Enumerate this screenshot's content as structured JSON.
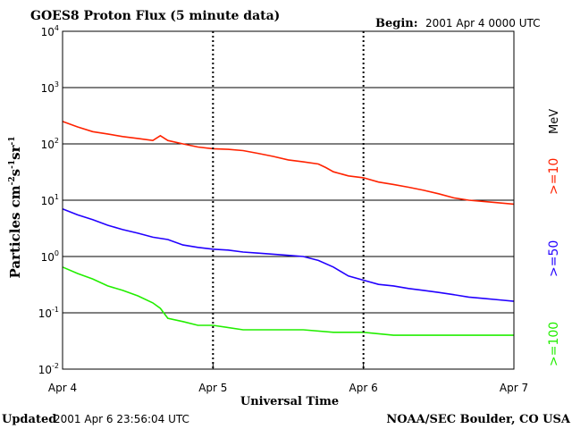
{
  "header": {
    "title": "GOES8 Proton Flux (5 minute data)",
    "begin_label": "Begin:",
    "begin_value": "2001 Apr 4 0000 UTC"
  },
  "footer": {
    "updated_label": "Updated",
    "updated_value": "2001 Apr  6 23:56:04 UTC",
    "credit": "NOAA/SEC Boulder, CO USA"
  },
  "chart_data": {
    "type": "line",
    "title": "GOES8 Proton Flux (5 minute data)",
    "xlabel": "Universal Time",
    "ylabel_base": "Particles cm",
    "ylabel_parts": [
      "-2",
      "s",
      "-1",
      "sr",
      "-1"
    ],
    "yscale": "log",
    "ylim": [
      0.01,
      10000
    ],
    "xlim": [
      0,
      3
    ],
    "x_unit": "days since 2001 Apr 4 0000 UTC",
    "x_ticks": [
      {
        "value": 0,
        "label": "Apr 4"
      },
      {
        "value": 1,
        "label": "Apr 5"
      },
      {
        "value": 2,
        "label": "Apr 6"
      },
      {
        "value": 3,
        "label": "Apr 7"
      }
    ],
    "y_ticks": [
      {
        "value": 0.01,
        "base": "10",
        "exp": "-2"
      },
      {
        "value": 0.1,
        "base": "10",
        "exp": "-1"
      },
      {
        "value": 1,
        "base": "10",
        "exp": "0"
      },
      {
        "value": 10,
        "base": "10",
        "exp": "1"
      },
      {
        "value": 100,
        "base": "10",
        "exp": "2"
      },
      {
        "value": 1000,
        "base": "10",
        "exp": "3"
      },
      {
        "value": 10000,
        "base": "10",
        "exp": "4"
      }
    ],
    "gridlines_y": [
      0.1,
      1,
      10,
      100,
      1000
    ],
    "series": [
      {
        "name": ">=10",
        "color": "#ff2200",
        "x": [
          0,
          0.1,
          0.2,
          0.3,
          0.4,
          0.5,
          0.6,
          0.65,
          0.7,
          0.8,
          0.9,
          1.0,
          1.1,
          1.2,
          1.3,
          1.4,
          1.5,
          1.6,
          1.7,
          1.75,
          1.8,
          1.9,
          2.0,
          2.1,
          2.2,
          2.3,
          2.4,
          2.5,
          2.6,
          2.7,
          2.8,
          2.9,
          3.0
        ],
        "values": [
          250,
          200,
          165,
          150,
          135,
          125,
          115,
          140,
          115,
          100,
          88,
          82,
          80,
          76,
          68,
          60,
          52,
          48,
          44,
          38,
          32,
          27,
          25,
          21,
          19,
          17,
          15,
          13,
          11,
          10,
          9.5,
          9,
          8.5
        ]
      },
      {
        "name": ">=50",
        "color": "#2200ff",
        "x": [
          0,
          0.1,
          0.2,
          0.3,
          0.4,
          0.5,
          0.6,
          0.7,
          0.8,
          0.9,
          1.0,
          1.1,
          1.2,
          1.3,
          1.4,
          1.5,
          1.6,
          1.7,
          1.8,
          1.9,
          2.0,
          2.1,
          2.2,
          2.3,
          2.4,
          2.5,
          2.6,
          2.7,
          2.8,
          2.9,
          3.0
        ],
        "values": [
          7,
          5.5,
          4.5,
          3.6,
          3.0,
          2.6,
          2.2,
          2.0,
          1.6,
          1.45,
          1.35,
          1.3,
          1.2,
          1.15,
          1.1,
          1.05,
          1.0,
          0.85,
          0.65,
          0.45,
          0.38,
          0.32,
          0.3,
          0.27,
          0.25,
          0.23,
          0.21,
          0.19,
          0.18,
          0.17,
          0.16
        ]
      },
      {
        "name": ">=100",
        "color": "#22ee00",
        "x": [
          0,
          0.1,
          0.2,
          0.3,
          0.4,
          0.5,
          0.6,
          0.65,
          0.7,
          0.8,
          0.9,
          1.0,
          1.2,
          1.4,
          1.6,
          1.8,
          2.0,
          2.2,
          2.4,
          2.6,
          2.8,
          3.0
        ],
        "values": [
          0.65,
          0.5,
          0.4,
          0.3,
          0.25,
          0.2,
          0.15,
          0.12,
          0.08,
          0.07,
          0.06,
          0.06,
          0.05,
          0.05,
          0.05,
          0.045,
          0.045,
          0.04,
          0.04,
          0.04,
          0.04,
          0.04
        ]
      }
    ],
    "legend": {
      "placement": "right",
      "unit": "MeV",
      "entries": [
        ">=10",
        ">=50",
        ">=100"
      ]
    }
  }
}
